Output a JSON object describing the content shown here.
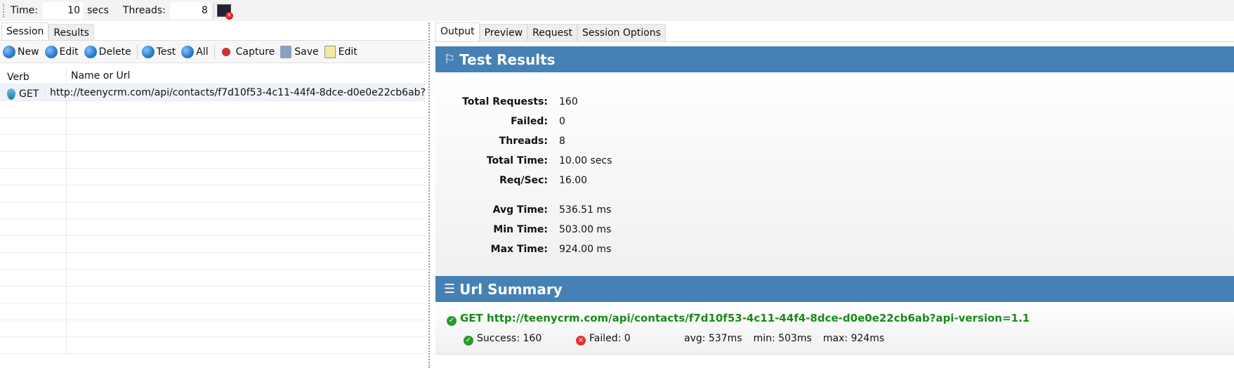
{
  "topbar": {
    "time_label": "Time:",
    "time_value": "10",
    "time_unit": "secs",
    "threads_label": "Threads:",
    "threads_value": "8"
  },
  "left": {
    "tabs": [
      "Session",
      "Results"
    ],
    "toolbar": {
      "new": "New",
      "edit": "Edit",
      "delete": "Delete",
      "test": "Test",
      "all": "All",
      "capture": "Capture",
      "save": "Save",
      "edit2": "Edit"
    },
    "columns": [
      "Verb",
      "Name or Url"
    ],
    "rows": [
      {
        "verb": "GET",
        "url": "http://teenycrm.com/api/contacts/f7d10f53-4c11-44f4-8dce-d0e0e22cb6ab?"
      }
    ]
  },
  "right": {
    "tabs": [
      "Output",
      "Preview",
      "Request",
      "Session Options"
    ],
    "test_results": {
      "title": "Test Results",
      "stats": [
        {
          "k": "Total Requests:",
          "v": "160"
        },
        {
          "k": "Failed:",
          "v": "0"
        },
        {
          "k": "Threads:",
          "v": "8"
        },
        {
          "k": "Total Time:",
          "v": "10.00 secs"
        },
        {
          "k": "Req/Sec:",
          "v": "16.00"
        }
      ],
      "times": [
        {
          "k": "Avg Time:",
          "v": "536.51 ms"
        },
        {
          "k": "Min Time:",
          "v": "503.00 ms"
        },
        {
          "k": "Max Time:",
          "v": "924.00 ms"
        }
      ]
    },
    "url_summary": {
      "title": "Url Summary",
      "url": "GET http://teenycrm.com/api/contacts/f7d10f53-4c11-44f4-8dce-d0e0e22cb6ab?api-version=1.1",
      "success": "Success: 160",
      "failed": "Failed: 0",
      "avg": "avg: 537ms",
      "min": "min: 503ms",
      "max": "max: 924ms"
    }
  },
  "colors": {
    "header_band": "#4581b5",
    "success": "#1a8a1a",
    "failed": "#dd3333"
  }
}
